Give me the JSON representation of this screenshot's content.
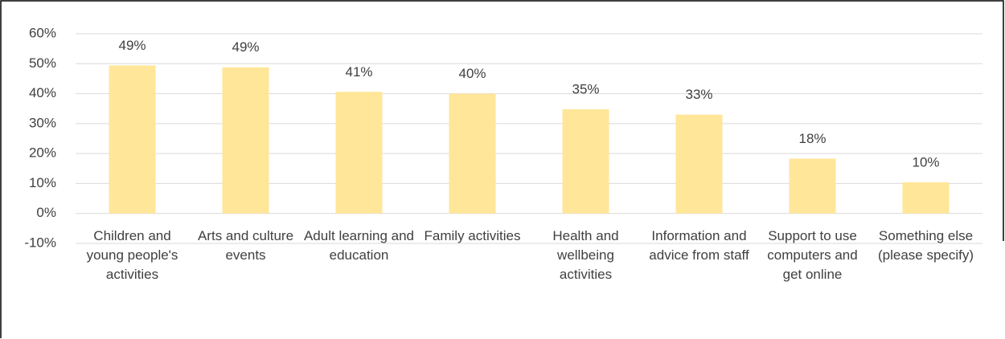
{
  "chart_data": {
    "type": "bar",
    "categories": [
      "Children and young people's activities",
      "Arts and culture events",
      "Adult learning and education",
      "Family activities",
      "Health and wellbeing activities",
      "Information and advice from staff",
      "Support to use computers and get online",
      "Something else (please specify)"
    ],
    "values": [
      49.4,
      48.8,
      40.6,
      40,
      34.8,
      33,
      18.3,
      10.4
    ],
    "value_labels": [
      "49%",
      "49%",
      "41%",
      "40%",
      "35%",
      "33%",
      "18%",
      "10%"
    ],
    "color": "#ffe699",
    "ylim": [
      -10,
      60
    ],
    "yticks": [
      {
        "value": -10,
        "label": "-10%"
      },
      {
        "value": 0,
        "label": "0%"
      },
      {
        "value": 10,
        "label": "10%"
      },
      {
        "value": 20,
        "label": "20%"
      },
      {
        "value": 30,
        "label": "30%"
      },
      {
        "value": 40,
        "label": "40%"
      },
      {
        "value": 50,
        "label": "50%"
      },
      {
        "value": 60,
        "label": "60%"
      }
    ],
    "grid": true
  }
}
